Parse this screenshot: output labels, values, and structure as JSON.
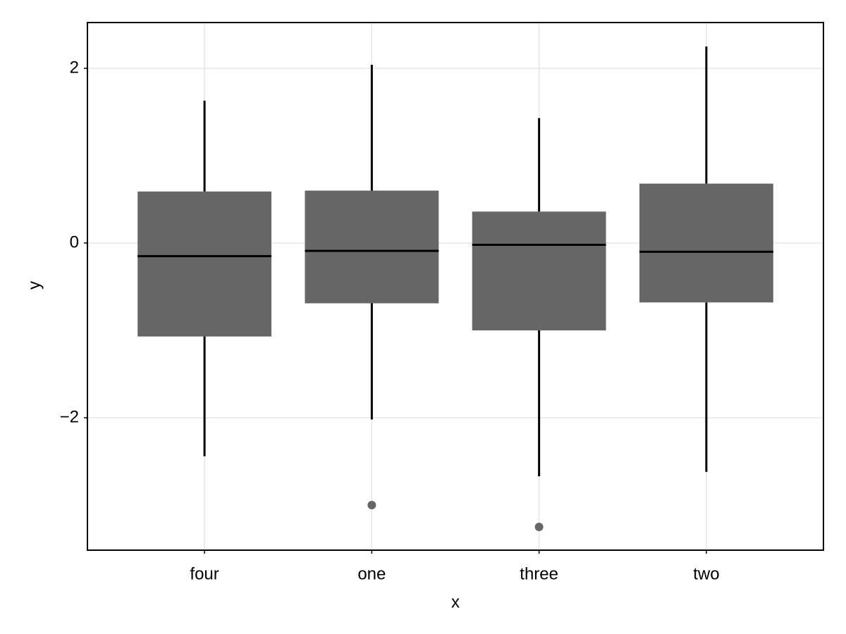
{
  "chart_data": {
    "type": "box",
    "xlabel": "x",
    "ylabel": "y",
    "categories": [
      "four",
      "one",
      "three",
      "two"
    ],
    "whisker_low": [
      -2.44,
      -2.02,
      -2.67,
      -2.62
    ],
    "q1": [
      -1.07,
      -0.69,
      -1.0,
      -0.68
    ],
    "median": [
      -0.15,
      -0.09,
      -0.02,
      -0.1
    ],
    "q3": [
      0.59,
      0.6,
      0.36,
      0.68
    ],
    "whisker_high": [
      1.63,
      2.04,
      1.43,
      2.25
    ],
    "outliers": [
      [],
      [
        -3.0
      ],
      [
        -3.25
      ],
      []
    ],
    "color": "#666666",
    "line_color": "#000000",
    "ylim": [
      -3.516,
      2.524
    ],
    "yticks": [
      {
        "value": -2,
        "label": "−2"
      },
      0,
      2
    ],
    "grid": true
  }
}
